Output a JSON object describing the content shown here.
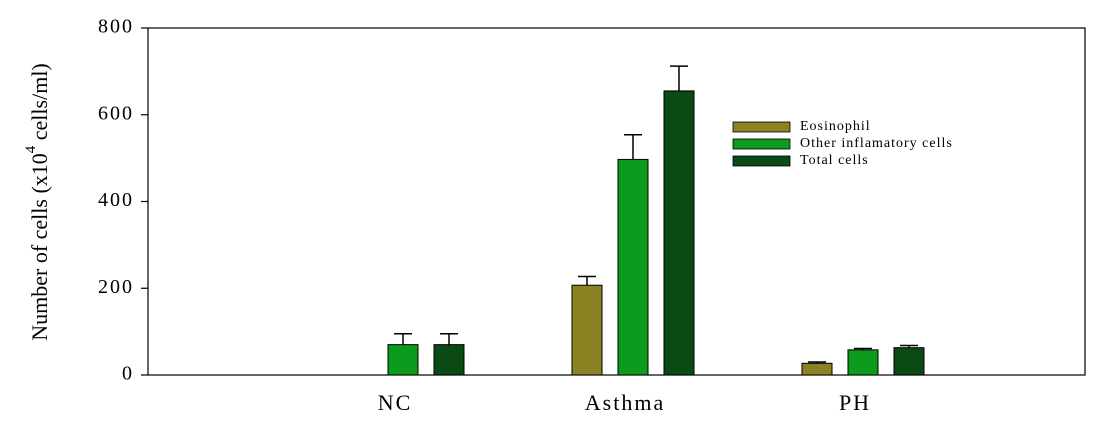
{
  "chart_data": {
    "type": "bar",
    "ylabel": [
      "Number of cells (x10",
      "4",
      " cells/ml)"
    ],
    "categories": [
      "NC",
      "Asthma",
      "PH"
    ],
    "series": [
      {
        "name": "Eosinophil",
        "color": "#8b8323",
        "values": [
          0,
          207,
          27
        ],
        "errors": [
          0,
          20,
          3
        ]
      },
      {
        "name": "Other inflamatory cells",
        "color": "#0b9a1c",
        "values": [
          70,
          497,
          58
        ],
        "errors": [
          25,
          57,
          3
        ]
      },
      {
        "name": "Total cells",
        "color": "#0a4a14",
        "values": [
          70,
          655,
          63
        ],
        "errors": [
          25,
          57,
          5
        ]
      }
    ],
    "ylim": [
      0,
      800
    ],
    "yticks": [
      0,
      200,
      400,
      600,
      800
    ],
    "grid": false,
    "legend": "upper right"
  }
}
